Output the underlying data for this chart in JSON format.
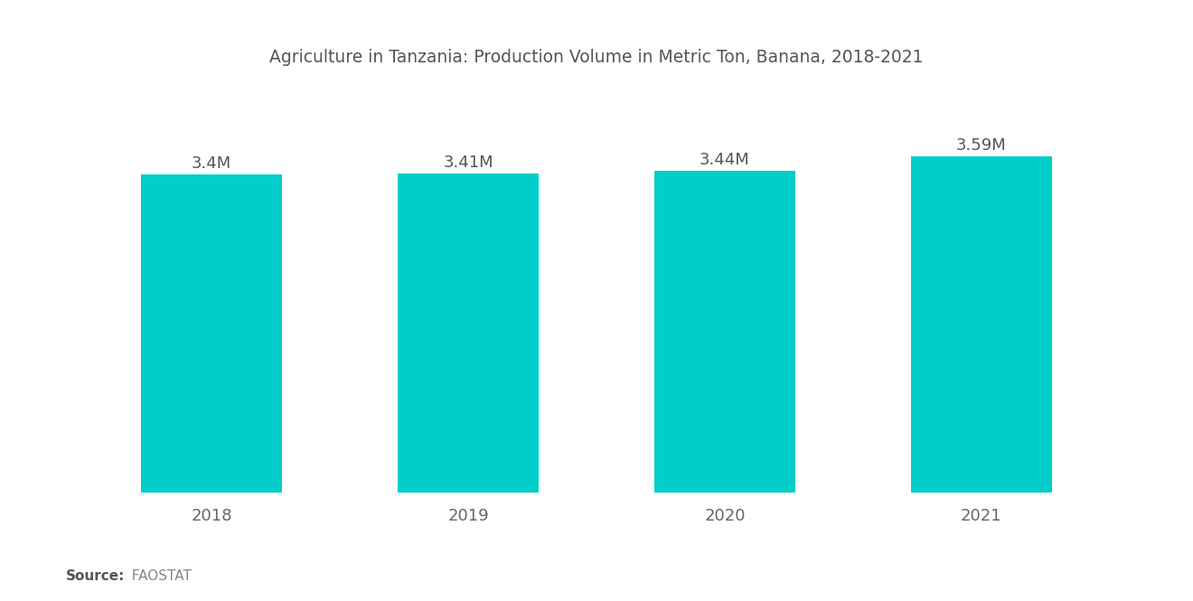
{
  "title": "Agriculture in Tanzania: Production Volume in Metric Ton, Banana, 2018-2021",
  "categories": [
    "2018",
    "2019",
    "2020",
    "2021"
  ],
  "values": [
    3400000,
    3410000,
    3440000,
    3590000
  ],
  "labels": [
    "3.4M",
    "3.41M",
    "3.44M",
    "3.59M"
  ],
  "bar_color": "#00CEC9",
  "background_color": "#ffffff",
  "title_fontsize": 13.5,
  "label_fontsize": 13,
  "tick_fontsize": 13,
  "source_bold": "Source:",
  "source_plain": "  FAOSTAT",
  "ylim": [
    0,
    4300000
  ],
  "bar_width": 0.55,
  "title_color": "#555555",
  "tick_color": "#666666",
  "label_color": "#555555"
}
